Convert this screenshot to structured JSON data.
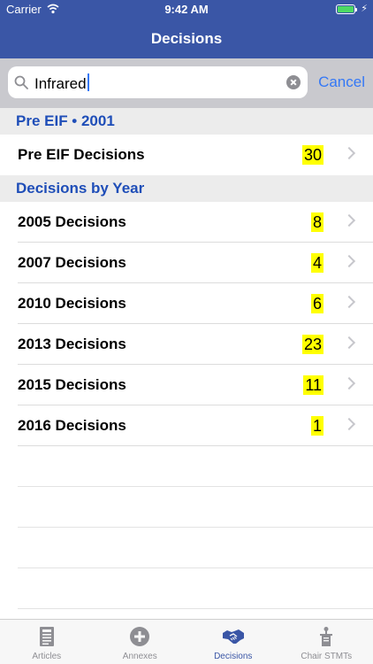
{
  "status": {
    "carrier": "Carrier",
    "time": "9:42 AM"
  },
  "nav": {
    "title": "Decisions"
  },
  "search": {
    "value": "Infrared",
    "cancel_label": "Cancel"
  },
  "sections": [
    {
      "title": "Pre EIF • 2001",
      "rows": [
        {
          "label": "Pre EIF Decisions",
          "count": "30"
        }
      ]
    },
    {
      "title": "Decisions by Year",
      "rows": [
        {
          "label": "2005 Decisions",
          "count": "8"
        },
        {
          "label": "2007 Decisions",
          "count": "4"
        },
        {
          "label": "2010 Decisions",
          "count": "6"
        },
        {
          "label": "2013 Decisions",
          "count": "23"
        },
        {
          "label": "2015 Decisions",
          "count": "11"
        },
        {
          "label": "2016 Decisions",
          "count": "1"
        }
      ]
    }
  ],
  "tabbar": {
    "active_color": "#3a56a6",
    "items": [
      {
        "label": "Articles",
        "icon": "document-icon"
      },
      {
        "label": "Annexes",
        "icon": "plus-circle-icon"
      },
      {
        "label": "Decisions",
        "icon": "handshake-icon",
        "active": true
      },
      {
        "label": "Chair STMTs",
        "icon": "podium-icon"
      }
    ]
  },
  "colors": {
    "nav_bar": "#3a56a6",
    "section_title": "#1f4eb8",
    "highlight": "#ffff00",
    "link": "#3478f6"
  }
}
